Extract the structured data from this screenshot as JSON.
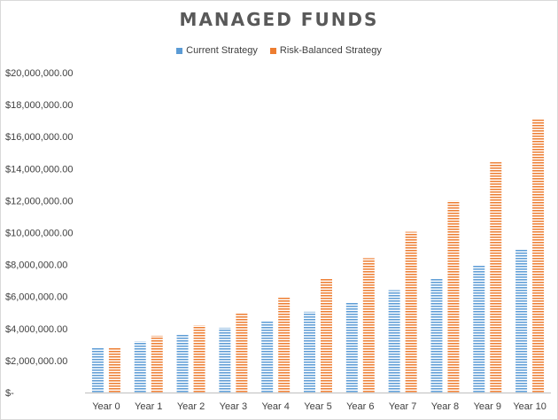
{
  "chart_data": {
    "type": "bar",
    "title": "MANAGED FUNDS",
    "xlabel": "",
    "ylabel": "",
    "categories": [
      "Year 0",
      "Year 1",
      "Year 2",
      "Year 3",
      "Year 4",
      "Year 5",
      "Year 6",
      "Year 7",
      "Year 8",
      "Year 9",
      "Year 10"
    ],
    "series": [
      {
        "name": "Current Strategy",
        "color": "#5b9bd5",
        "values": [
          2800000,
          3200000,
          3600000,
          4050000,
          4500000,
          5050000,
          5650000,
          6400000,
          7150000,
          8000000,
          8950000
        ]
      },
      {
        "name": "Risk-Balanced Strategy",
        "color": "#ed7d31",
        "values": [
          2800000,
          3550000,
          4200000,
          5000000,
          5950000,
          7100000,
          8400000,
          10050000,
          12000000,
          14400000,
          17150000
        ]
      }
    ],
    "ylim": [
      0,
      20000000
    ],
    "yticks": [
      0,
      2000000,
      4000000,
      6000000,
      8000000,
      10000000,
      12000000,
      14000000,
      16000000,
      18000000,
      20000000
    ],
    "ytick_labels": [
      "$-",
      "$2,000,000.00",
      "$4,000,000.00",
      "$6,000,000.00",
      "$8,000,000.00",
      "$10,000,000.00",
      "$12,000,000.00",
      "$14,000,000.00",
      "$16,000,000.00",
      "$18,000,000.00",
      "$20,000,000.00"
    ],
    "grid": false,
    "legend_position": "top",
    "bar_pattern": "horizontal-stripes"
  }
}
